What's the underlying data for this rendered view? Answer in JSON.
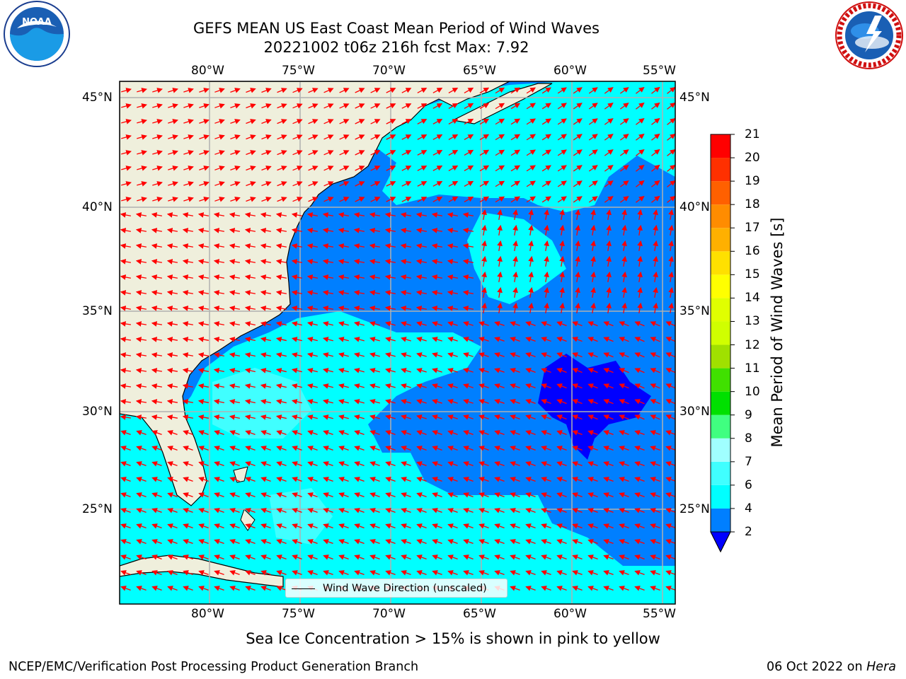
{
  "title": {
    "line1": "GEFS MEAN US East Coast Mean Period of Wind Waves",
    "line2": "20221002 t06z 216h fcst   Max: 7.92"
  },
  "map": {
    "lon_ticks": [
      "80°W",
      "75°W",
      "70°W",
      "65°W",
      "60°W",
      "55°W"
    ],
    "lat_ticks": [
      "45°N",
      "40°N",
      "35°N",
      "30°N",
      "25°N"
    ],
    "extent": {
      "lon": [
        -85,
        -54.5
      ],
      "lat": [
        20.5,
        46
      ]
    },
    "land_color": "#efefdc",
    "arrow_color": "#ff0000",
    "gridline_color": "#b0b0b0"
  },
  "legend": {
    "label": "Wind Wave Direction (unscaled)"
  },
  "colorbar": {
    "label": "Mean Period of Wind Waves [s]",
    "ticks": [
      "2",
      "4",
      "6",
      "7",
      "8",
      "9",
      "10",
      "11",
      "12",
      "13",
      "14",
      "15",
      "16",
      "17",
      "18",
      "19",
      "20",
      "21"
    ],
    "colors": [
      "#007fff",
      "#00ffff",
      "#40ffff",
      "#a0ffff",
      "#40ff80",
      "#00e000",
      "#40e000",
      "#a0e000",
      "#d0ff00",
      "#e0ff00",
      "#ffff00",
      "#ffe000",
      "#ffb000",
      "#ff8c00",
      "#ff6000",
      "#ff3000",
      "#ff0000"
    ],
    "under_color": "#0000ff"
  },
  "subnote": "Sea Ice Concentration > 15% is shown in pink to yellow",
  "footer": {
    "left": "NCEP/EMC/Verification Post Processing Product Generation Branch",
    "date": "06 Oct 2022 on",
    "machine": "Hera"
  },
  "logos": {
    "noaa_text": "NOAA"
  }
}
